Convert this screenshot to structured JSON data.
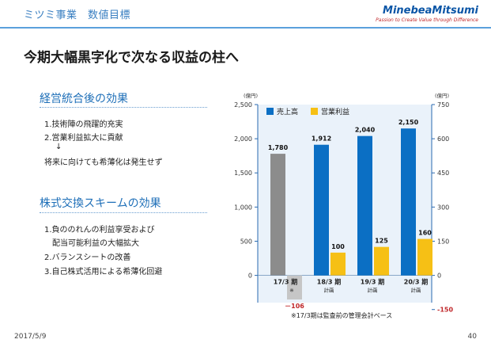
{
  "header": {
    "section": "ミツミ事業　数値目標",
    "logo_name": "MinebeaMitsumi",
    "logo_tagline": "Passion to Create Value through Difference"
  },
  "title": "今期大幅黒字化で次なる収益の柱へ",
  "section1": {
    "heading": "経営統合後の効果",
    "lines": [
      "1.技術陣の飛躍的充実",
      "2.営業利益拡大に貢献",
      "↓",
      "将来に向けても希薄化は発生せず"
    ]
  },
  "section2": {
    "heading": "株式交換スキームの効果",
    "lines": [
      "1.負ののれんの利益享受および",
      "配当可能利益の大幅拡大",
      "2.バランスシートの改善",
      "3.自己株式活用による希薄化回避"
    ]
  },
  "chart_data": {
    "type": "bar",
    "left_unit": "(億円)",
    "right_unit": "(億円)",
    "left_axis": {
      "ticks": [
        "0",
        "500",
        "1,000",
        "1,500",
        "2,000",
        "2,500"
      ],
      "min": 0,
      "max": 2500
    },
    "right_axis": {
      "ticks": [
        "-150",
        "0",
        "150",
        "300",
        "450",
        "600",
        "750"
      ],
      "min": -150,
      "max": 750
    },
    "categories": [
      {
        "line1": "17/3 期",
        "line2": "※"
      },
      {
        "line1": "18/3 期",
        "line2": "計画"
      },
      {
        "line1": "19/3 期",
        "line2": "計画"
      },
      {
        "line1": "20/3 期",
        "line2": "計画"
      }
    ],
    "series": [
      {
        "name": "売上高",
        "axis": "left",
        "values": [
          1780,
          1912,
          2040,
          2150
        ],
        "labels": [
          "1,780",
          "1,912",
          "2,040",
          "2,150"
        ]
      },
      {
        "name": "営業利益",
        "axis": "right",
        "values": [
          -106,
          100,
          125,
          160
        ],
        "labels": [
          "－106",
          "100",
          "125",
          "160"
        ]
      }
    ],
    "colors": {
      "sales": "#0b6fc4",
      "sales_actual": "#8c8c8c",
      "profit": "#f6c015",
      "profit_actual": "#c6c6c6",
      "negative_label": "#c0282b",
      "axis": "#2a6ab0"
    },
    "note": "※17/3期は監査前の管理会計ベース"
  },
  "footer": {
    "date": "2017/5/9",
    "page": "40"
  }
}
